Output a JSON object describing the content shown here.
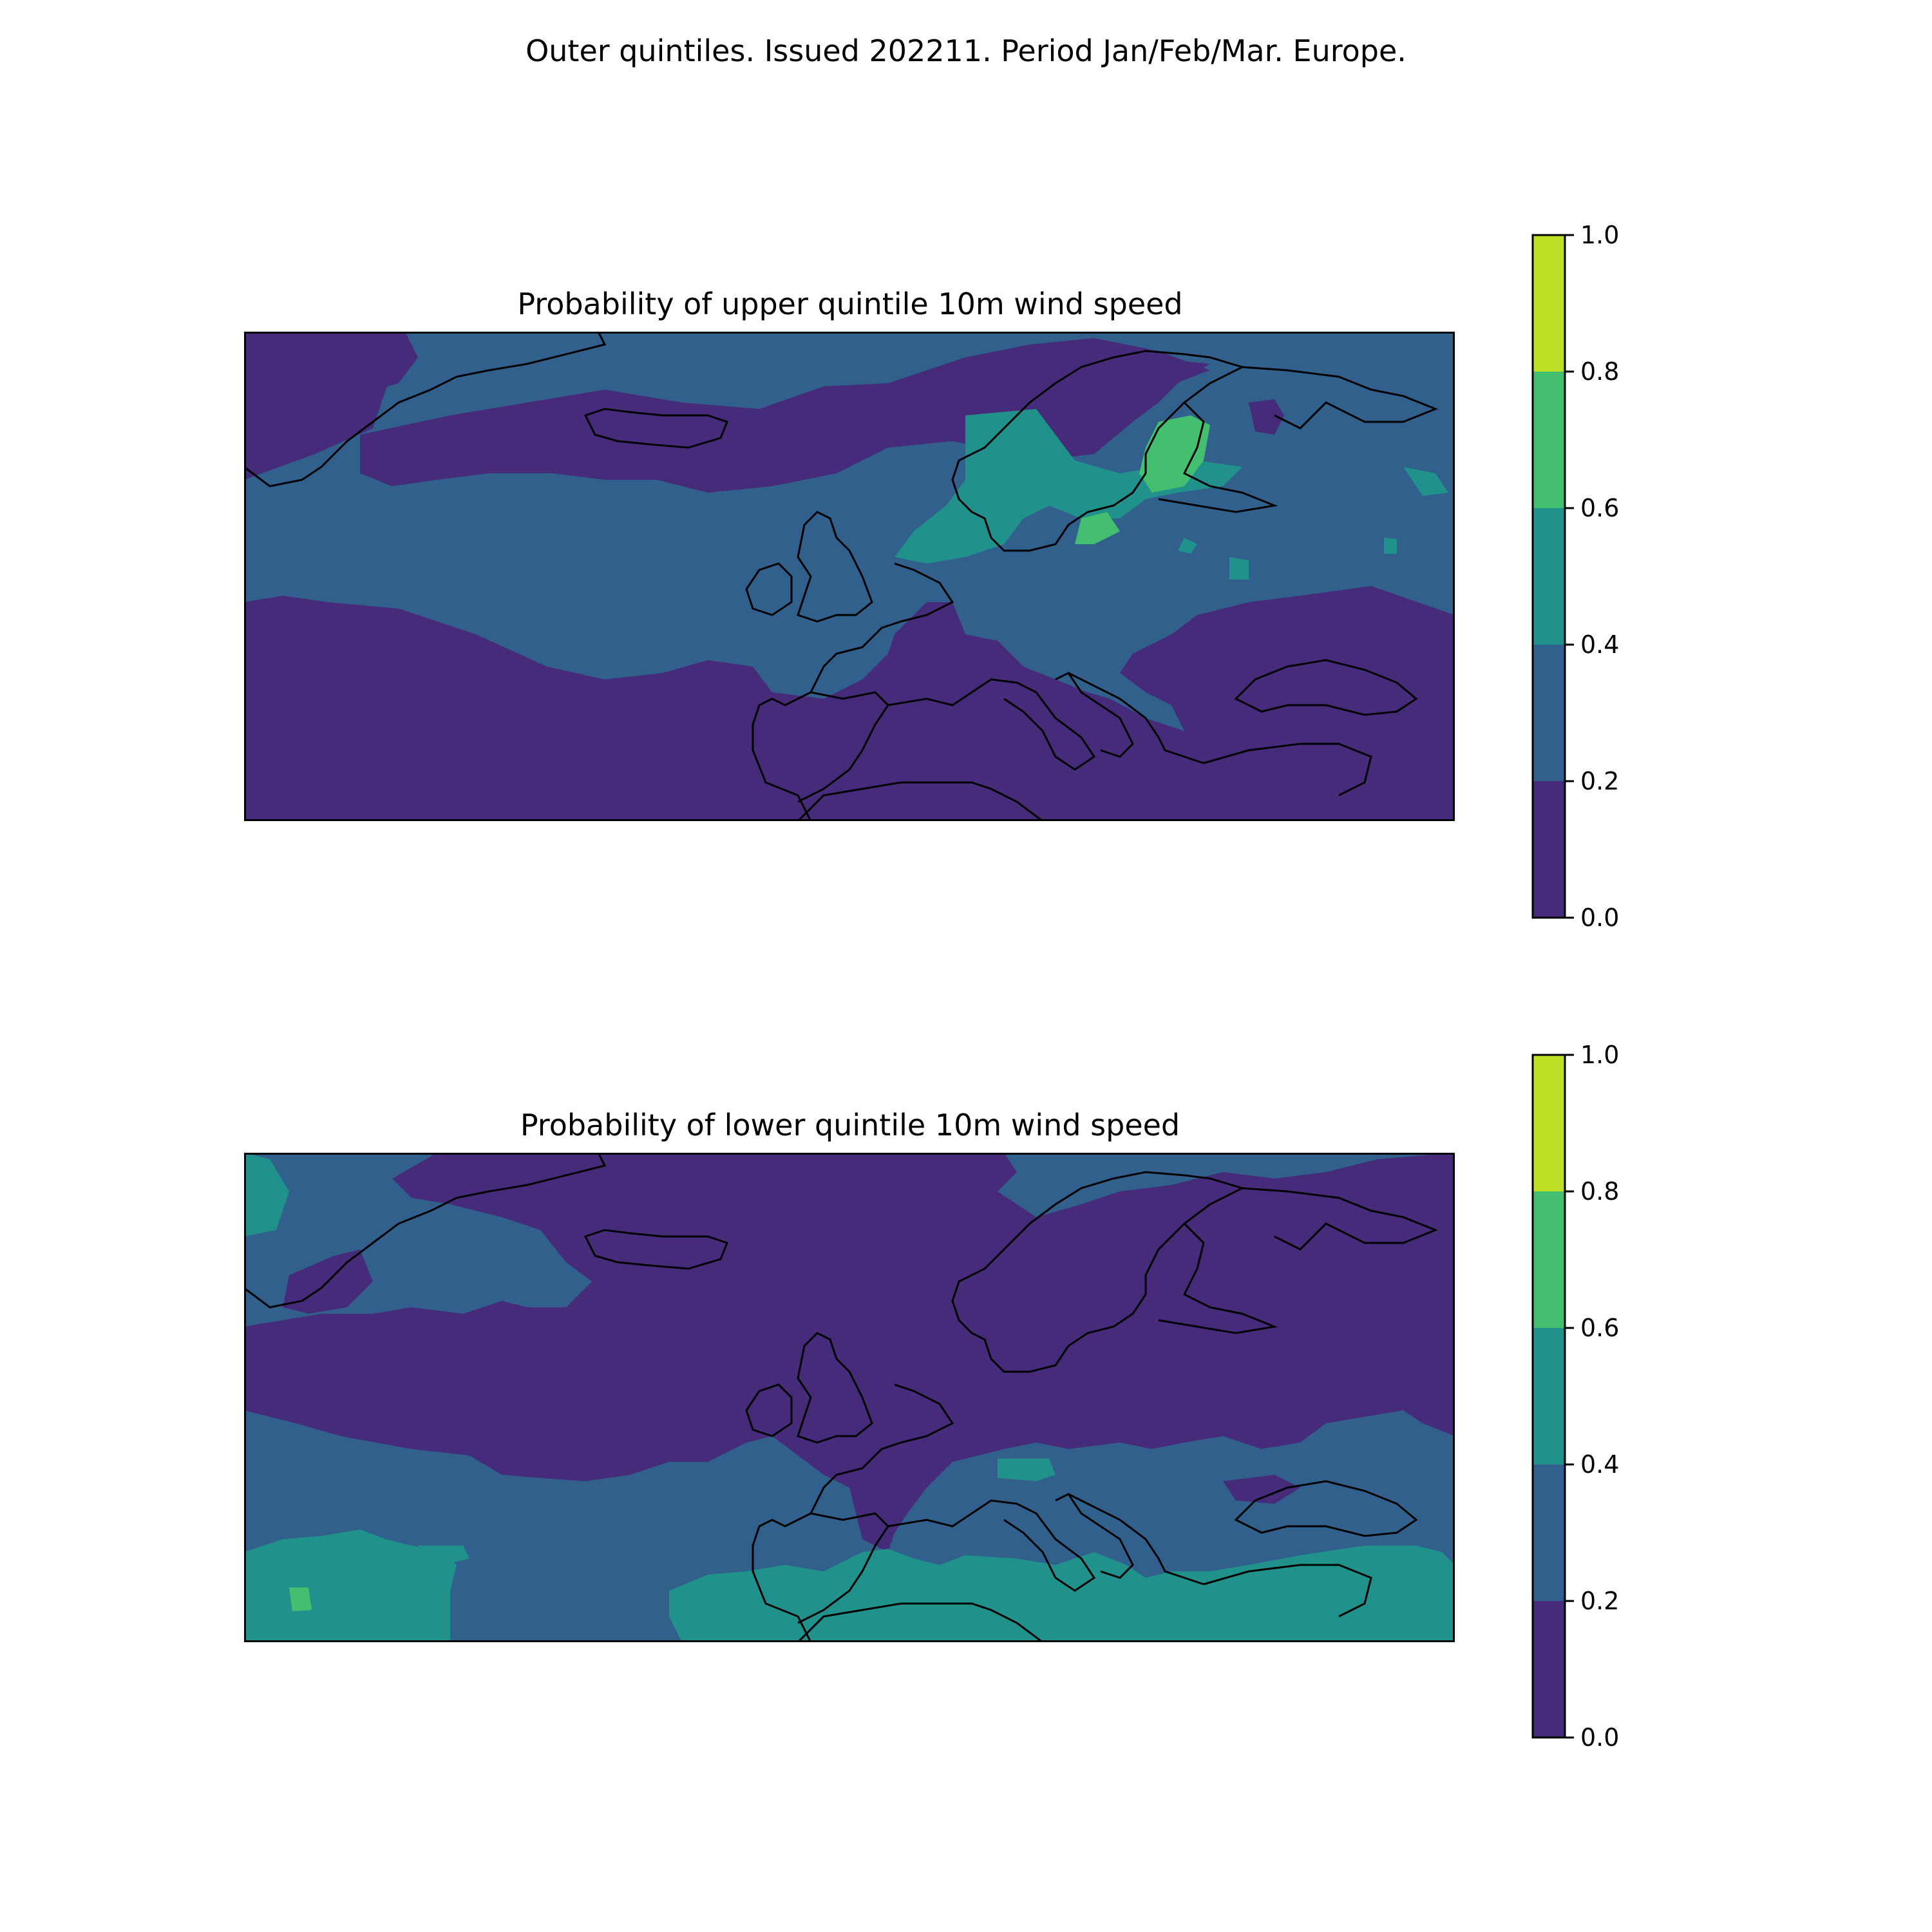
{
  "figure": {
    "suptitle": "Outer quintiles. Issued 202211. Period Jan/Feb/Mar. Europe."
  },
  "colors": {
    "levels": [
      "#462b7a",
      "#31608d",
      "#20918b",
      "#44bf70",
      "#bddf26"
    ],
    "coastline": "#000000",
    "frame": "#000000"
  },
  "colorbar": {
    "boundaries": [
      0.0,
      0.2,
      0.4,
      0.6,
      0.8,
      1.0
    ],
    "tick_labels": [
      "0.0",
      "0.2",
      "0.4",
      "0.6",
      "0.8",
      "1.0"
    ]
  },
  "panels": [
    {
      "id": "upper",
      "title": "Probability of upper quintile 10m wind speed"
    },
    {
      "id": "lower",
      "title": "Probability of lower quintile 10m wind speed"
    }
  ]
}
